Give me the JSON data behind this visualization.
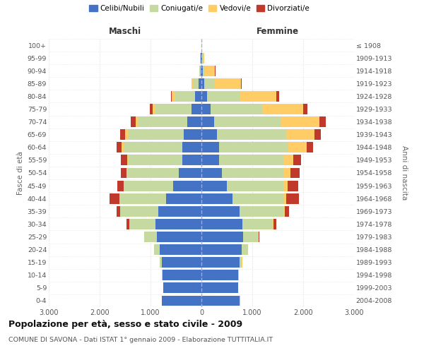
{
  "age_groups_bottom_to_top": [
    "0-4",
    "5-9",
    "10-14",
    "15-19",
    "20-24",
    "25-29",
    "30-34",
    "35-39",
    "40-44",
    "45-49",
    "50-54",
    "55-59",
    "60-64",
    "65-69",
    "70-74",
    "75-79",
    "80-84",
    "85-89",
    "90-94",
    "95-99",
    "100+"
  ],
  "birth_years_bottom_to_top": [
    "2004-2008",
    "1999-2003",
    "1994-1998",
    "1989-1993",
    "1984-1988",
    "1979-1983",
    "1974-1978",
    "1969-1973",
    "1964-1968",
    "1959-1963",
    "1954-1958",
    "1949-1953",
    "1944-1948",
    "1939-1943",
    "1934-1938",
    "1929-1933",
    "1924-1928",
    "1919-1923",
    "1914-1918",
    "1909-1913",
    "≤ 1908"
  ],
  "males_celibe": [
    780,
    750,
    760,
    780,
    820,
    870,
    900,
    850,
    700,
    550,
    450,
    380,
    380,
    350,
    280,
    200,
    120,
    50,
    20,
    15,
    5
  ],
  "males_coniugato": [
    3,
    6,
    12,
    35,
    105,
    250,
    510,
    750,
    900,
    960,
    1010,
    1060,
    1150,
    1100,
    950,
    700,
    390,
    110,
    15,
    5,
    0
  ],
  "males_vedovo": [
    0,
    0,
    0,
    0,
    0,
    0,
    2,
    2,
    6,
    12,
    18,
    25,
    35,
    55,
    65,
    65,
    75,
    35,
    8,
    2,
    0
  ],
  "males_divorziato": [
    0,
    0,
    0,
    2,
    6,
    5,
    55,
    65,
    205,
    125,
    105,
    125,
    105,
    95,
    95,
    55,
    15,
    5,
    0,
    0,
    0
  ],
  "females_nubile": [
    755,
    720,
    725,
    755,
    785,
    820,
    800,
    755,
    605,
    505,
    405,
    345,
    345,
    305,
    255,
    185,
    105,
    60,
    28,
    18,
    5
  ],
  "females_coniugata": [
    3,
    6,
    18,
    42,
    125,
    305,
    605,
    855,
    1010,
    1110,
    1210,
    1260,
    1360,
    1360,
    1310,
    1010,
    660,
    210,
    35,
    8,
    0
  ],
  "females_vedova": [
    0,
    0,
    0,
    2,
    6,
    6,
    12,
    22,
    52,
    82,
    135,
    205,
    360,
    560,
    760,
    810,
    710,
    510,
    205,
    32,
    0
  ],
  "females_divorziata": [
    0,
    0,
    0,
    2,
    6,
    12,
    55,
    85,
    255,
    205,
    185,
    145,
    135,
    125,
    125,
    85,
    55,
    15,
    8,
    2,
    0
  ],
  "color_celibe": "#4472C4",
  "color_coniugato": "#C5D9A0",
  "color_vedovo": "#FFCC66",
  "color_divorziato": "#C0392B",
  "xlim": 3000,
  "title": "Popolazione per età, sesso e stato civile - 2009",
  "subtitle": "COMUNE DI SAVONA - Dati ISTAT 1° gennaio 2009 - Elaborazione TUTTITALIA.IT",
  "label_maschi": "Maschi",
  "label_femmine": "Femmine",
  "ylabel_left": "Fasce di età",
  "ylabel_right": "Anni di nascita",
  "legend_labels": [
    "Celibi/Nubili",
    "Coniugati/e",
    "Vedovi/e",
    "Divorziati/e"
  ],
  "bg_color": "#FFFFFF",
  "grid_color": "#CCCCCC",
  "xtick_labels": [
    "3.000",
    "2.000",
    "1.000",
    "0",
    "1.000",
    "2.000",
    "3.000"
  ]
}
